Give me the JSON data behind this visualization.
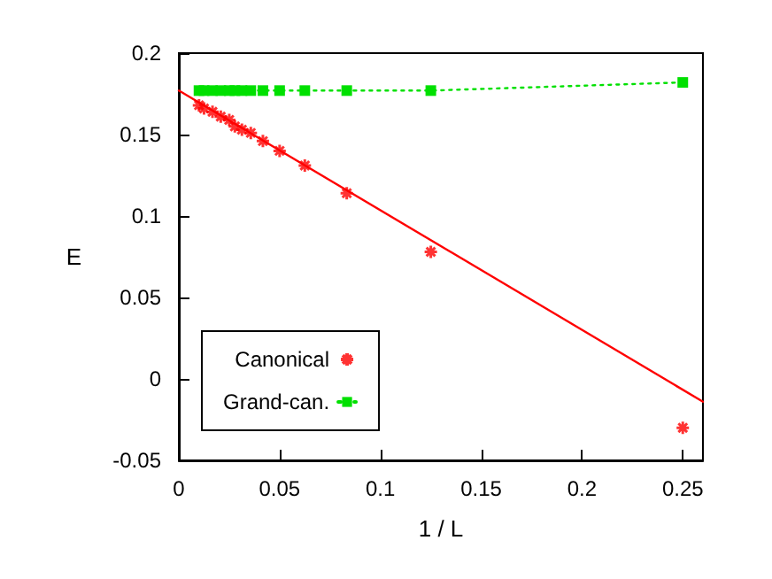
{
  "chart_data": {
    "type": "scatter",
    "xlabel": "1 / L",
    "ylabel": "E",
    "xlim": [
      0,
      0.26
    ],
    "xticks": [
      0,
      0.05,
      0.1,
      0.15,
      0.2,
      0.25
    ],
    "ylim": [
      -0.05,
      0.2
    ],
    "yticks": [
      -0.05,
      0,
      0.05,
      0.1,
      0.15,
      0.2
    ],
    "grid": false,
    "legend": "bottom left",
    "series": [
      {
        "name": "Canonical",
        "marker": "cross",
        "color": "#ff0000",
        "x": [
          0.25,
          0.125,
          0.0833,
          0.0625,
          0.05,
          0.0417,
          0.0357,
          0.0313,
          0.0278,
          0.025,
          0.0208,
          0.0167,
          0.0125,
          0.01
        ],
        "values": [
          -0.03,
          0.078,
          0.114,
          0.131,
          0.14,
          0.146,
          0.151,
          0.153,
          0.155,
          0.159,
          0.161,
          0.164,
          0.166,
          0.168
        ]
      },
      {
        "name": "Grand-can.",
        "type": "line",
        "marker": "square",
        "line_style": "dotted",
        "color": "#00e000",
        "x": [
          0.25,
          0.125,
          0.0833,
          0.0625,
          0.05,
          0.0417,
          0.0357,
          0.0313,
          0.0278,
          0.025,
          0.0208,
          0.0167,
          0.0125,
          0.01
        ],
        "values": [
          0.182,
          0.177,
          0.177,
          0.177,
          0.177,
          0.177,
          0.177,
          0.177,
          0.177,
          0.177,
          0.177,
          0.177,
          0.177,
          0.177
        ]
      },
      {
        "type": "line",
        "marker": "none",
        "line_style": "solid",
        "color": "#ff0000",
        "x": [
          0,
          0.26
        ],
        "values": [
          0.177,
          -0.014
        ]
      }
    ]
  }
}
